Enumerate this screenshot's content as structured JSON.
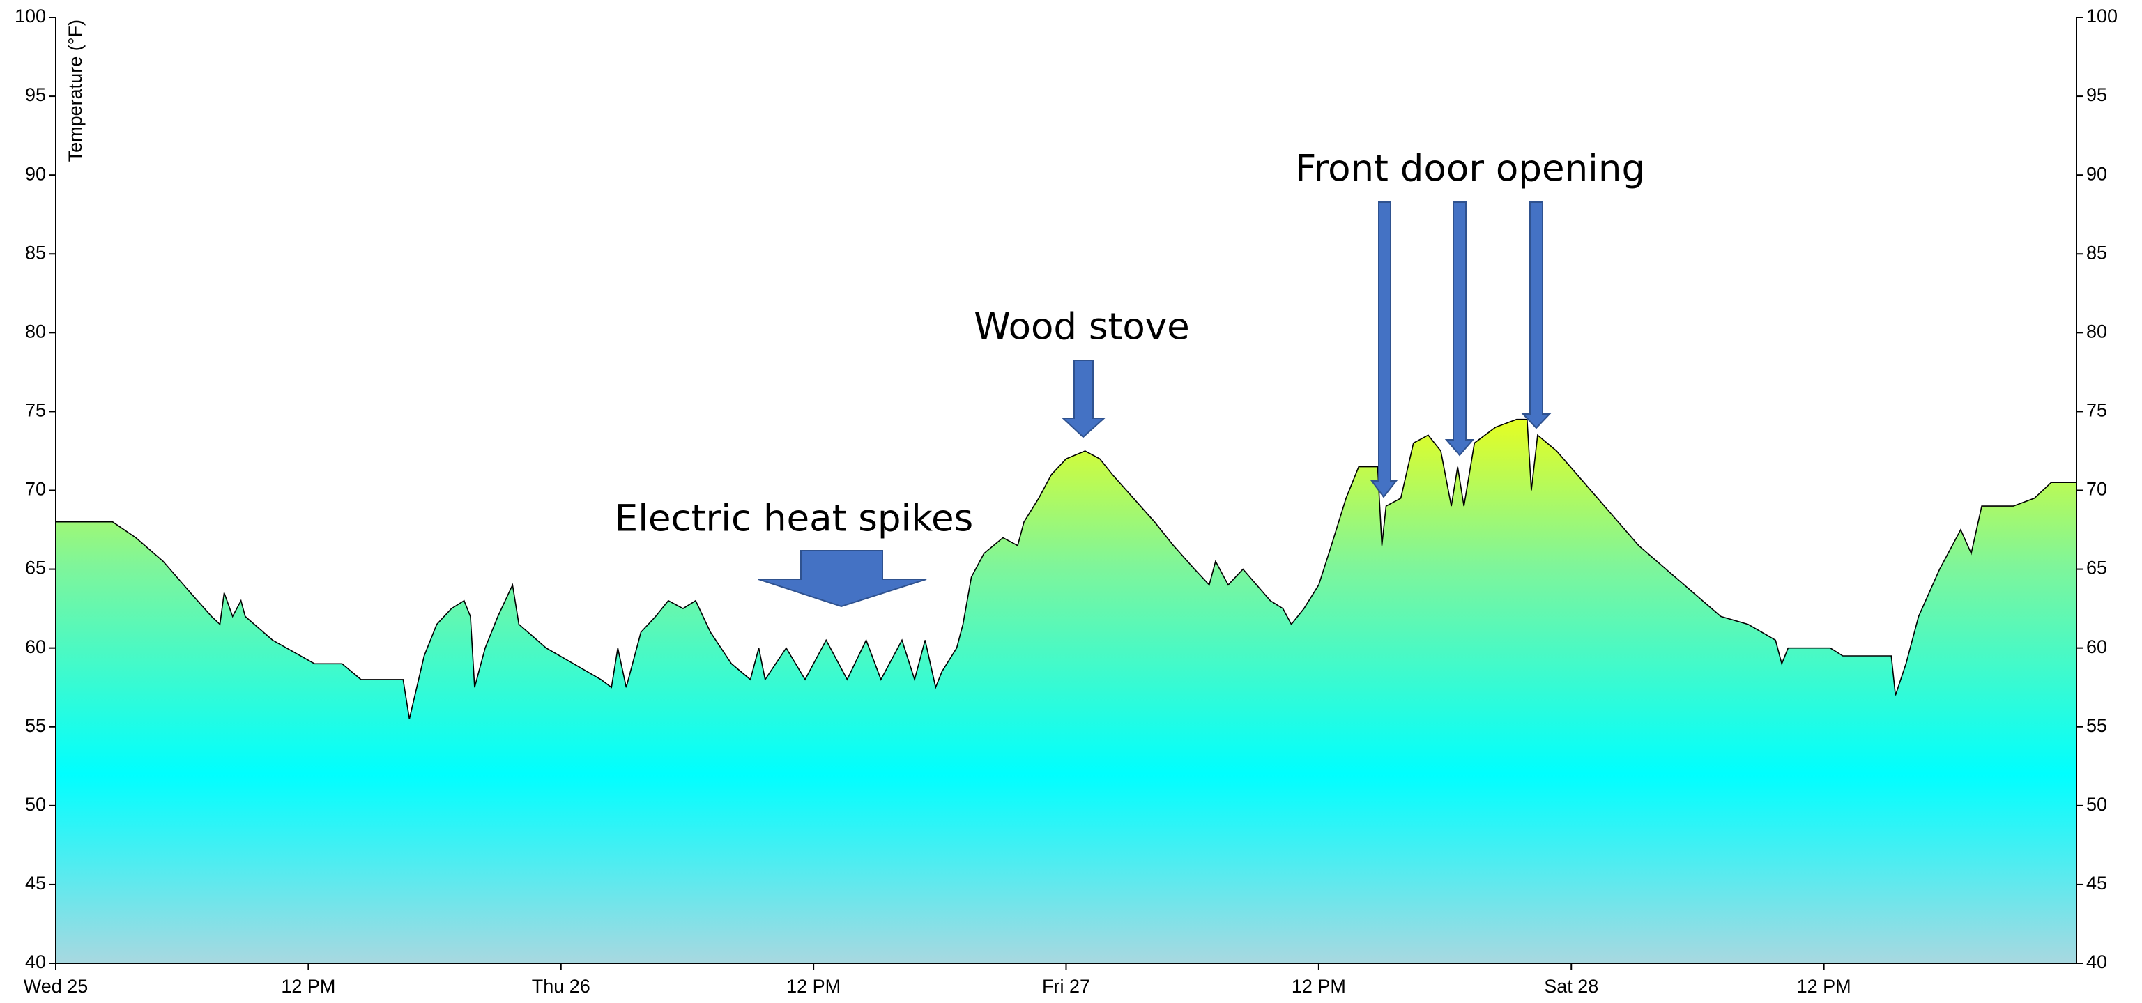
{
  "chart_data": {
    "type": "area",
    "y_label": "Temperature (°F)",
    "annotations": [
      "Electric heat spikes",
      "Wood stove",
      "Front door opening"
    ],
    "xlim": [
      0,
      96
    ],
    "xticks": [
      {
        "value": 0,
        "label": "Wed 25"
      },
      {
        "value": 12,
        "label": "12 PM"
      },
      {
        "value": 24,
        "label": "Thu 26"
      },
      {
        "value": 36,
        "label": "12 PM"
      },
      {
        "value": 48,
        "label": "Fri 27"
      },
      {
        "value": 60,
        "label": "12 PM"
      },
      {
        "value": 72,
        "label": "Sat 28"
      },
      {
        "value": 84,
        "label": "12 PM"
      }
    ],
    "ylim": [
      40,
      100
    ],
    "yticks": [
      40,
      45,
      50,
      55,
      60,
      65,
      70,
      75,
      80,
      85,
      90,
      95,
      100
    ],
    "y2lim": [
      40,
      100
    ],
    "y2ticks": [
      40,
      45,
      50,
      55,
      60,
      65,
      70,
      75,
      80,
      85,
      90,
      95,
      100
    ],
    "line_color": "#000000",
    "series": [
      {
        "name": "Temperature",
        "x": [
          0,
          2.7,
          3.8,
          5.1,
          6.4,
          7.4,
          7.8,
          8.0,
          8.4,
          8.8,
          9.0,
          10.3,
          12.3,
          13.6,
          14.5,
          16.5,
          16.8,
          17.5,
          18.1,
          18.8,
          19.4,
          19.7,
          19.9,
          20.4,
          21.0,
          21.7,
          22.0,
          23.3,
          24.6,
          25.9,
          26.4,
          26.7,
          27.1,
          27.8,
          28.5,
          29.1,
          29.8,
          30.4,
          31.1,
          32.1,
          33.0,
          33.4,
          33.7,
          34.7,
          35.6,
          36.6,
          37.6,
          38.5,
          39.2,
          40.2,
          40.8,
          41.3,
          41.8,
          42.1,
          42.8,
          43.1,
          43.5,
          44.1,
          45.0,
          45.7,
          46.0,
          46.7,
          47.3,
          48.0,
          48.9,
          49.6,
          50.2,
          51.2,
          52.2,
          53.1,
          54.1,
          54.8,
          55.1,
          55.7,
          56.4,
          57.7,
          58.3,
          58.7,
          59.3,
          60.0,
          60.6,
          61.3,
          61.9,
          62.8,
          63.0,
          63.2,
          63.9,
          64.5,
          65.2,
          65.8,
          66.3,
          66.6,
          66.9,
          67.4,
          68.4,
          69.4,
          69.9,
          70.1,
          70.4,
          71.3,
          72.6,
          73.9,
          75.2,
          76.5,
          77.8,
          79.1,
          80.4,
          81.7,
          82.0,
          82.3,
          84.3,
          84.9,
          87.2,
          87.4,
          87.9,
          88.5,
          89.5,
          90.5,
          91.0,
          91.5,
          93.0,
          94.0,
          94.8,
          96
        ],
        "values": [
          68,
          68,
          67,
          65.5,
          63.5,
          62,
          61.5,
          63.5,
          62,
          63,
          62,
          60.5,
          59,
          59,
          58,
          58,
          55.5,
          59.5,
          61.5,
          62.5,
          63,
          62,
          57.5,
          60,
          62,
          64,
          61.5,
          60,
          59,
          58,
          57.5,
          60,
          57.5,
          61,
          62,
          63,
          62.5,
          63,
          61,
          59,
          58,
          60,
          58,
          60,
          58,
          60.5,
          58,
          60.5,
          58,
          60.5,
          58,
          60.5,
          57.5,
          58.5,
          60,
          61.5,
          64.5,
          66,
          67,
          66.5,
          68,
          69.5,
          71,
          72,
          72.5,
          72,
          71,
          69.5,
          68,
          66.5,
          65,
          64,
          65.5,
          64,
          65,
          63,
          62.5,
          61.5,
          62.5,
          64,
          66.5,
          69.5,
          71.5,
          71.5,
          66.5,
          69,
          69.5,
          73,
          73.5,
          72.5,
          69,
          71.5,
          69,
          73,
          74,
          74.5,
          74.5,
          70,
          73.5,
          72.5,
          70.5,
          68.5,
          66.5,
          65,
          63.5,
          62,
          61.5,
          60.5,
          59,
          60,
          60,
          59.5,
          59.5,
          57,
          59,
          62,
          65,
          67.5,
          66,
          69,
          69,
          69.5,
          70.5,
          70.5
        ]
      }
    ]
  }
}
